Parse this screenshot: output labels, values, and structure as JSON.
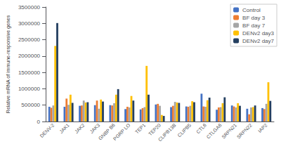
{
  "chart_data": {
    "type": "bar",
    "categories": [
      "DENV-2",
      "JAK1",
      "JAK2",
      "JAK3",
      "GNBP B6",
      "PGRP LO",
      "TEP1",
      "TEP20",
      "CLIPB13B",
      "CLIPB5",
      "CTL6",
      "CTLGA6",
      "SRPN21",
      "SRPN22",
      "IAP2"
    ],
    "series": [
      {
        "name": "Control",
        "color": "#4472C4",
        "values": [
          450000,
          450000,
          480000,
          500000,
          500000,
          380000,
          370000,
          520000,
          440000,
          460000,
          850000,
          360000,
          490000,
          390000,
          410000
        ]
      },
      {
        "name": "BF day 3",
        "color": "#ED7D31",
        "values": [
          420000,
          700000,
          490000,
          640000,
          490000,
          450000,
          410000,
          540000,
          480000,
          450000,
          460000,
          430000,
          460000,
          220000,
          380000
        ]
      },
      {
        "name": "BF day 7",
        "color": "#A5A5A5",
        "values": [
          490000,
          510000,
          640000,
          390000,
          560000,
          430000,
          440000,
          480000,
          600000,
          480000,
          450000,
          440000,
          430000,
          430000,
          540000
        ]
      },
      {
        "name": "DENv2 day3",
        "color": "#FFC000",
        "values": [
          2310000,
          820000,
          580000,
          670000,
          820000,
          780000,
          1700000,
          200000,
          580000,
          620000,
          650000,
          560000,
          560000,
          440000,
          1200000
        ]
      },
      {
        "name": "DENv2 day7",
        "color": "#243F60",
        "values": [
          3010000,
          570000,
          590000,
          610000,
          990000,
          640000,
          820000,
          170000,
          570000,
          590000,
          730000,
          740000,
          480000,
          490000,
          630000
        ]
      }
    ],
    "ylabel": "Relative mRNA of immune-responsive genes",
    "ylim": [
      0,
      3500000
    ],
    "yticks": [
      0,
      500000,
      1000000,
      1500000,
      2000000,
      2500000,
      3000000,
      3500000
    ],
    "grid": false,
    "legend": "upper right"
  }
}
